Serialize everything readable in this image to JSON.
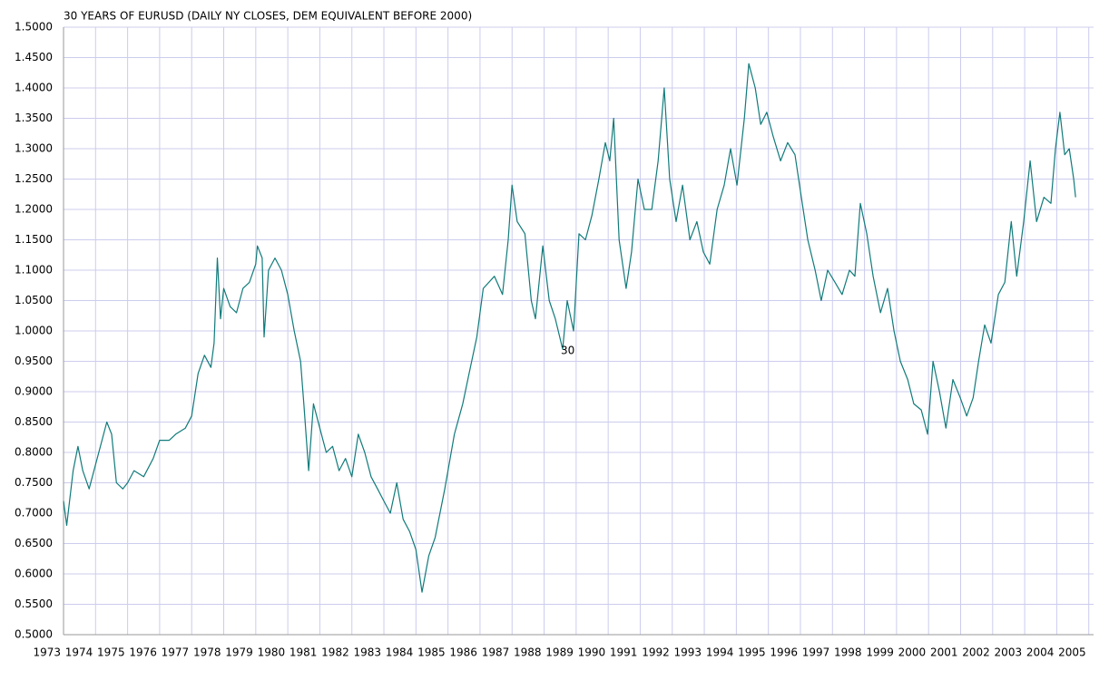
{
  "chart_data": {
    "type": "line",
    "title": "30 YEARS OF EURUSD (DAILY NY CLOSES, DEM EQUIVALENT BEFORE 2000)",
    "annotation": "30",
    "grid": true,
    "xlim": [
      1973,
      2005.15
    ],
    "xticks": [
      1973,
      1974,
      1975,
      1976,
      1977,
      1978,
      1979,
      1980,
      1981,
      1982,
      1983,
      1984,
      1985,
      1986,
      1987,
      1988,
      1989,
      1990,
      1991,
      1992,
      1993,
      1994,
      1995,
      1996,
      1997,
      1998,
      1999,
      2000,
      2001,
      2002,
      2003,
      2004,
      2005
    ],
    "ylim": [
      0.5,
      1.5
    ],
    "yticks": [
      {
        "value": 0.5,
        "label": "0.5000"
      },
      {
        "value": 0.55,
        "label": "0.5500"
      },
      {
        "value": 0.6,
        "label": "0.6000"
      },
      {
        "value": 0.65,
        "label": "0.6500"
      },
      {
        "value": 0.7,
        "label": "0.7000"
      },
      {
        "value": 0.75,
        "label": "0.7500"
      },
      {
        "value": 0.8,
        "label": "0.8000"
      },
      {
        "value": 0.85,
        "label": "0.8500"
      },
      {
        "value": 0.9,
        "label": "0.9000"
      },
      {
        "value": 0.95,
        "label": "0.9500"
      },
      {
        "value": 1.0,
        "label": "1.0000"
      },
      {
        "value": 1.05,
        "label": "1.0500"
      },
      {
        "value": 1.1,
        "label": "1.1000"
      },
      {
        "value": 1.15,
        "label": "1.1500"
      },
      {
        "value": 1.2,
        "label": "1.2000"
      },
      {
        "value": 1.25,
        "label": "1.2500"
      },
      {
        "value": 1.3,
        "label": "1.3000"
      },
      {
        "value": 1.35,
        "label": "1.3500"
      },
      {
        "value": 1.4,
        "label": "1.4000"
      },
      {
        "value": 1.45,
        "label": "1.4500"
      },
      {
        "value": 1.5,
        "label": "1.5000"
      }
    ],
    "color": "#117a7a",
    "x": [
      1973.0,
      1973.1,
      1973.3,
      1973.45,
      1973.6,
      1973.8,
      1974.0,
      1974.2,
      1974.35,
      1974.5,
      1974.65,
      1974.85,
      1975.0,
      1975.2,
      1975.5,
      1975.8,
      1976.0,
      1976.3,
      1976.5,
      1976.8,
      1977.0,
      1977.2,
      1977.4,
      1977.6,
      1977.7,
      1977.8,
      1977.9,
      1978.0,
      1978.2,
      1978.4,
      1978.6,
      1978.8,
      1979.0,
      1979.05,
      1979.2,
      1979.26,
      1979.4,
      1979.6,
      1979.8,
      1980.0,
      1980.2,
      1980.4,
      1980.5,
      1980.65,
      1980.8,
      1981.0,
      1981.2,
      1981.4,
      1981.6,
      1981.8,
      1982.0,
      1982.2,
      1982.4,
      1982.6,
      1982.8,
      1983.0,
      1983.2,
      1983.4,
      1983.6,
      1983.8,
      1984.0,
      1984.19,
      1984.4,
      1984.6,
      1984.9,
      1985.2,
      1985.46,
      1985.66,
      1985.9,
      1986.1,
      1986.45,
      1986.7,
      1986.88,
      1987.0,
      1987.16,
      1987.4,
      1987.6,
      1987.73,
      1987.96,
      1988.16,
      1988.35,
      1988.58,
      1988.72,
      1988.92,
      1989.09,
      1989.29,
      1989.49,
      1989.71,
      1989.91,
      1990.05,
      1990.17,
      1990.34,
      1990.56,
      1990.73,
      1990.93,
      1991.13,
      1991.36,
      1991.56,
      1991.75,
      1991.92,
      1992.12,
      1992.32,
      1992.55,
      1992.77,
      1992.97,
      1993.17,
      1993.4,
      1993.62,
      1993.82,
      1994.02,
      1994.25,
      1994.39,
      1994.59,
      1994.76,
      1994.95,
      1995.15,
      1995.38,
      1995.6,
      1995.83,
      1996.03,
      1996.23,
      1996.46,
      1996.65,
      1996.85,
      1997.08,
      1997.3,
      1997.53,
      1997.7,
      1997.87,
      1998.07,
      1998.27,
      1998.5,
      1998.72,
      1998.92,
      1999.12,
      1999.35,
      1999.54,
      1999.77,
      1999.97,
      2000.14,
      2000.34,
      2000.54,
      2000.76,
      2000.99,
      2001.19,
      2001.39,
      2001.56,
      2001.75,
      2001.95,
      2002.18,
      2002.38,
      2002.58,
      2002.75,
      2002.97,
      2003.17,
      2003.37,
      2003.6,
      2003.82,
      2003.96,
      2004.1,
      2004.25,
      2004.39,
      2004.53,
      2004.59
    ],
    "values": [
      0.72,
      0.68,
      0.77,
      0.81,
      0.77,
      0.74,
      0.78,
      0.82,
      0.85,
      0.83,
      0.75,
      0.74,
      0.75,
      0.77,
      0.76,
      0.79,
      0.82,
      0.82,
      0.83,
      0.84,
      0.86,
      0.93,
      0.96,
      0.94,
      0.98,
      1.12,
      1.02,
      1.07,
      1.04,
      1.03,
      1.07,
      1.08,
      1.11,
      1.14,
      1.12,
      0.99,
      1.1,
      1.12,
      1.1,
      1.06,
      1.0,
      0.95,
      0.88,
      0.77,
      0.88,
      0.84,
      0.8,
      0.81,
      0.77,
      0.79,
      0.76,
      0.83,
      0.8,
      0.76,
      0.74,
      0.72,
      0.7,
      0.75,
      0.69,
      0.67,
      0.64,
      0.57,
      0.63,
      0.66,
      0.74,
      0.83,
      0.88,
      0.93,
      0.99,
      1.07,
      1.09,
      1.06,
      1.15,
      1.24,
      1.18,
      1.16,
      1.05,
      1.02,
      1.14,
      1.05,
      1.02,
      0.97,
      1.05,
      1.0,
      1.16,
      1.15,
      1.19,
      1.25,
      1.31,
      1.28,
      1.35,
      1.15,
      1.07,
      1.13,
      1.25,
      1.2,
      1.2,
      1.28,
      1.4,
      1.25,
      1.18,
      1.24,
      1.15,
      1.18,
      1.13,
      1.11,
      1.2,
      1.24,
      1.3,
      1.24,
      1.35,
      1.44,
      1.4,
      1.34,
      1.36,
      1.32,
      1.28,
      1.31,
      1.29,
      1.22,
      1.15,
      1.1,
      1.05,
      1.1,
      1.08,
      1.06,
      1.1,
      1.09,
      1.21,
      1.16,
      1.09,
      1.03,
      1.07,
      1.0,
      0.95,
      0.92,
      0.88,
      0.87,
      0.83,
      0.95,
      0.9,
      0.84,
      0.92,
      0.89,
      0.86,
      0.89,
      0.95,
      1.01,
      0.98,
      1.06,
      1.08,
      1.18,
      1.09,
      1.18,
      1.28,
      1.18,
      1.22,
      1.21,
      1.3,
      1.36,
      1.29,
      1.3,
      1.25,
      1.22
    ]
  }
}
